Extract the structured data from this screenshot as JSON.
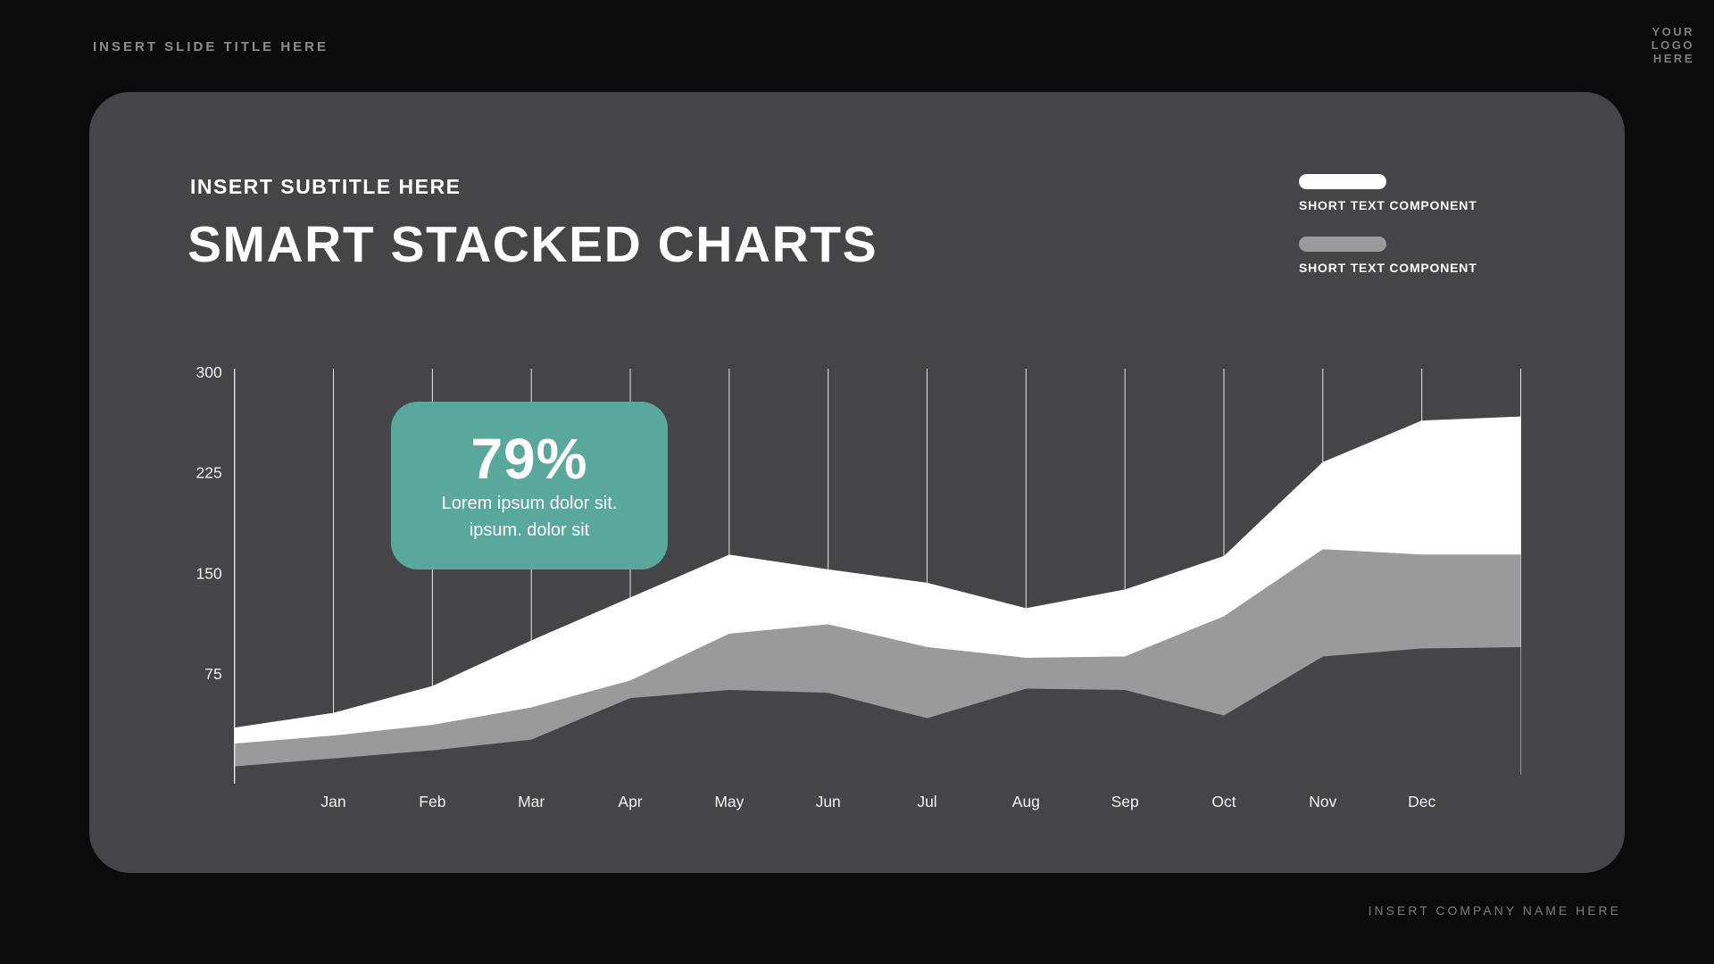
{
  "page": {
    "slide_title": "INSERT SLIDE TITLE HERE",
    "logo_lines": [
      "YOUR",
      "LOGO",
      "HERE"
    ],
    "company_name": "INSERT COMPANY NAME HERE"
  },
  "panel": {
    "subtitle": "INSERT SUBTITLE HERE",
    "heading": "SMART STACKED CHARTS",
    "legend": [
      {
        "label": "SHORT TEXT COMPONENT",
        "color": "#ffffff"
      },
      {
        "label": "SHORT TEXT COMPONENT",
        "color": "#9a9a9a"
      }
    ]
  },
  "callout": {
    "value": "79%",
    "line1": "Lorem ipsum dolor sit.",
    "line2": "ipsum. dolor sit",
    "background": "#5aa89d"
  },
  "chart_data": {
    "type": "area",
    "stacked": true,
    "x_labels": [
      "Jan",
      "Feb",
      "Mar",
      "Apr",
      "May",
      "Jun",
      "Jul",
      "Aug",
      "Sep",
      "Oct",
      "Nov",
      "Dec"
    ],
    "y_ticks": [
      75,
      150,
      225,
      300
    ],
    "ylim": [
      0,
      300
    ],
    "grid": "vertical",
    "legend_position": "top-right",
    "boundaries": {
      "top": [
        35,
        46,
        66,
        100,
        132,
        164,
        153,
        143,
        124,
        138,
        163,
        233,
        264,
        267
      ],
      "middle": [
        23,
        29,
        37,
        50,
        70,
        105,
        112,
        95,
        87,
        88,
        118,
        168,
        164,
        164
      ],
      "bottom": [
        6,
        12,
        18,
        26,
        57,
        63,
        61,
        42,
        64,
        63,
        44,
        88,
        94,
        95
      ]
    },
    "series": [
      {
        "name": "SHORT TEXT COMPONENT",
        "color": "#ffffff",
        "band": "top-to-middle"
      },
      {
        "name": "SHORT TEXT COMPONENT",
        "color": "#9a9a9a",
        "band": "middle-to-bottom"
      }
    ],
    "colors": {
      "grid": "#e9e9e9",
      "axis": "#ffffff",
      "tick_label": "#f2f2f2",
      "plot_background": "#454547"
    }
  }
}
